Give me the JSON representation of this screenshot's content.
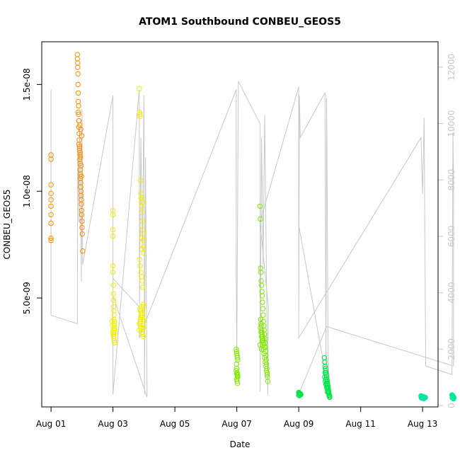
{
  "chart_data": {
    "type": "scatter",
    "title": "ATOM1 Southbound CONBEU_GEOS5",
    "xlabel": "Date",
    "ylabel": "CONBEU_GEOS5",
    "x_unit": "days since 2016-08-01",
    "xlim": [
      -0.3,
      12.5
    ],
    "ylim": [
      -1e-10,
      1.7e-08
    ],
    "y2lim": [
      -50,
      12900
    ],
    "x_ticks": [
      {
        "label": "Aug 01",
        "value": 0
      },
      {
        "label": "Aug 03",
        "value": 2
      },
      {
        "label": "Aug 05",
        "value": 4
      },
      {
        "label": "Aug 07",
        "value": 6
      },
      {
        "label": "Aug 09",
        "value": 8
      },
      {
        "label": "Aug 11",
        "value": 10
      },
      {
        "label": "Aug 13",
        "value": 12
      }
    ],
    "y_ticks": [
      {
        "label": "5.0e-09",
        "value": 5e-09
      },
      {
        "label": "1.0e-08",
        "value": 1e-08
      },
      {
        "label": "1.5e-08",
        "value": 1.5e-08
      }
    ],
    "y2_ticks": [
      {
        "label": "0",
        "value": 0
      },
      {
        "label": "2000",
        "value": 2000
      },
      {
        "label": "4000",
        "value": 4000
      },
      {
        "label": "6000",
        "value": 6000
      },
      {
        "label": "8000",
        "value": 8000
      },
      {
        "label": "10000",
        "value": 10000
      },
      {
        "label": "12000",
        "value": 12000
      }
    ],
    "grid": false,
    "series": [
      {
        "color": "#ff8c00",
        "x": [
          0.0,
          0.0,
          0.0,
          0.0,
          0.0,
          0.0,
          0.0,
          0.0,
          0.0,
          0.0,
          0.85,
          0.85,
          0.86,
          0.86,
          0.87,
          0.87,
          0.88,
          0.88,
          0.89,
          0.89,
          0.9,
          0.9,
          0.91,
          0.91,
          0.92,
          0.92,
          0.93,
          0.93,
          0.94,
          0.94,
          0.95,
          0.95,
          0.96,
          0.96,
          0.97,
          0.97,
          0.98,
          0.98,
          0.99,
          0.99,
          1.0,
          1.0,
          1.01,
          1.02,
          0.9,
          0.92,
          0.94,
          0.95,
          0.97,
          0.98,
          0.88,
          0.9,
          0.93,
          0.96,
          0.99
        ],
        "y": [
          1.17e-08,
          1.15e-08,
          1.03e-08,
          9.9e-09,
          9.6e-09,
          9.3e-09,
          8.9e-09,
          8.5e-09,
          7.8e-09,
          7.7e-09,
          1.64e-08,
          1.62e-08,
          1.6e-08,
          1.58e-08,
          1.55e-08,
          1.5e-08,
          1.46e-08,
          1.42e-08,
          1.4e-08,
          1.36e-08,
          1.33e-08,
          1.3e-08,
          1.27e-08,
          1.24e-08,
          1.21e-08,
          1.19e-08,
          1.17e-08,
          1.15e-08,
          1.13e-08,
          1.1e-08,
          1.08e-08,
          1.06e-08,
          1.04e-08,
          1.02e-08,
          1e-08,
          9.8e-09,
          9.6e-09,
          9.4e-09,
          9.1e-09,
          8.9e-09,
          8.6e-09,
          8.3e-09,
          8e-09,
          7.2e-09,
          1.22e-08,
          1.2e-08,
          1.18e-08,
          1.16e-08,
          1.12e-08,
          1.07e-08,
          1.37e-08,
          1.33e-08,
          1.31e-08,
          1.29e-08,
          1.26e-08
        ]
      },
      {
        "color": "#f4ee00",
        "x": [
          2.0,
          2.0,
          2.0,
          2.0,
          2.0,
          2.0,
          2.02,
          2.02,
          2.02,
          2.02,
          2.03,
          2.03,
          2.03,
          2.04,
          2.04,
          2.05,
          2.05,
          2.06,
          2.0,
          2.01,
          2.02,
          2.03,
          2.04,
          2.05,
          1.97,
          1.99,
          2.01,
          2.03,
          2.05,
          2.07,
          2.85,
          2.86,
          2.87,
          2.88,
          2.89,
          2.9,
          2.91,
          2.92,
          2.93,
          2.94,
          2.95,
          2.96,
          2.97,
          2.98,
          2.99,
          3.0,
          2.86,
          2.88,
          2.9,
          2.92,
          2.94,
          2.96,
          2.98,
          3.0,
          2.87,
          2.89,
          2.91,
          2.93,
          2.95,
          2.97,
          2.99,
          2.86,
          2.88,
          2.9,
          2.92,
          2.94,
          2.96,
          2.98,
          2.87,
          2.89,
          2.91,
          2.93,
          2.95,
          2.97,
          2.85,
          2.88,
          2.9,
          2.92,
          2.94,
          2.96,
          2.98
        ],
        "y": [
          9.1e-09,
          8.9e-09,
          8.2e-09,
          7.9e-09,
          6.5e-09,
          6.2e-09,
          5.6e-09,
          5.2e-09,
          4.9e-09,
          4.6e-09,
          4.4e-09,
          4.2e-09,
          4e-09,
          3.9e-09,
          3.8e-09,
          3.7e-09,
          3.6e-09,
          3.5e-09,
          3.4e-09,
          3.3e-09,
          3.2e-09,
          3.1e-09,
          3e-09,
          2.9e-09,
          3.9e-09,
          3.7e-09,
          3.5e-09,
          3.3e-09,
          3.6e-09,
          3.4e-09,
          1.48e-08,
          1.37e-08,
          1.36e-08,
          1.35e-08,
          1.05e-08,
          9.9e-09,
          9.7e-09,
          9.6e-09,
          9.3e-09,
          9e-09,
          8.6e-09,
          8.2e-09,
          8e-09,
          7.7e-09,
          7.4e-09,
          7.1e-09,
          6.8e-09,
          6.5e-09,
          6.2e-09,
          6e-09,
          5.8e-09,
          5.5e-09,
          4.7e-09,
          4.6e-09,
          4.5e-09,
          4.4e-09,
          4.3e-09,
          4.2e-09,
          4.1e-09,
          4e-09,
          3.9e-09,
          3.8e-09,
          3.7e-09,
          3.6e-09,
          3.5e-09,
          3.4e-09,
          3.3e-09,
          3.6e-09,
          3.8e-09,
          4e-09,
          4.4e-09,
          4.6e-09,
          4.3e-09,
          3.7e-09,
          3.5e-09,
          3.9e-09,
          4.1e-09,
          7.3e-09,
          7.8e-09,
          9.5e-09,
          3.2e-09
        ]
      },
      {
        "color": "#7fe800",
        "x": [
          5.98,
          5.99,
          6.0,
          6.01,
          6.02,
          6.03,
          5.99,
          6.0,
          6.01,
          6.02,
          6.03,
          6.0,
          6.01,
          6.02,
          5.98,
          6.0,
          6.02,
          6.75,
          6.76,
          6.77,
          6.78,
          6.79,
          6.8,
          6.81,
          6.82,
          6.83,
          6.84,
          6.85,
          6.86,
          6.87,
          6.88,
          6.89,
          6.9,
          6.91,
          6.92,
          6.93,
          6.94,
          6.95,
          6.96,
          6.97,
          6.98,
          6.99,
          7.0,
          6.76,
          6.78,
          6.8,
          6.82,
          6.84,
          6.86,
          6.88,
          6.9,
          6.92,
          6.94,
          6.96,
          6.98,
          6.78,
          6.8,
          6.82,
          6.84,
          6.86,
          6.88,
          6.77,
          6.79,
          6.81,
          6.83,
          6.85,
          6.75,
          6.8
        ],
        "y": [
          2.6e-09,
          2.5e-09,
          2.4e-09,
          2.3e-09,
          2.2e-09,
          2.1e-09,
          1.9e-09,
          1.7e-09,
          1.5e-09,
          1.4e-09,
          1.3e-09,
          1.2e-09,
          1.1e-09,
          1e-09,
          1.6e-09,
          1.45e-09,
          1.35e-09,
          9.3e-09,
          8.7e-09,
          6.4e-09,
          6.2e-09,
          5.8e-09,
          5.6e-09,
          5.3e-09,
          5.1e-09,
          4.8e-09,
          4.5e-09,
          4.2e-09,
          3.9e-09,
          3.7e-09,
          3.5e-09,
          3.3e-09,
          3.1e-09,
          2.9e-09,
          2.7e-09,
          2.5e-09,
          2.3e-09,
          2.1e-09,
          1.9e-09,
          1.7e-09,
          1.5e-09,
          1.3e-09,
          1.1e-09,
          3.6e-09,
          3.4e-09,
          3.2e-09,
          3e-09,
          2.8e-09,
          2.6e-09,
          2.4e-09,
          2.2e-09,
          2e-09,
          1.8e-09,
          1.6e-09,
          1.4e-09,
          3.8e-09,
          3.5e-09,
          3.3e-09,
          3.1e-09,
          2.9e-09,
          2.7e-09,
          4e-09,
          3.7e-09,
          3.4e-09,
          3.2e-09,
          3e-09,
          2.8e-09,
          2.6e-09
        ]
      },
      {
        "color": "#00e44a",
        "x": [
          8.0,
          8.01,
          8.02,
          8.03,
          8.04,
          8.05,
          8.06,
          8.07,
          8.0,
          8.02,
          8.04,
          8.06,
          8.83,
          8.84,
          8.85,
          8.86,
          8.87,
          8.88,
          8.89,
          8.9,
          8.91,
          8.92,
          8.93,
          8.94,
          8.95,
          8.96,
          8.97,
          8.98,
          8.99,
          9.0,
          8.84,
          8.86,
          8.88,
          8.9,
          8.92,
          8.94,
          8.96,
          8.98,
          9.0,
          8.85,
          8.87,
          8.89,
          8.91,
          8.93
        ],
        "y": [
          5.8e-10,
          5.6e-10,
          5.5e-10,
          5.4e-10,
          5.3e-10,
          5.2e-10,
          5e-10,
          4.8e-10,
          4.5e-10,
          4.3e-10,
          4.6e-10,
          4.9e-10,
          2.2e-09,
          2e-09,
          1.8e-09,
          1.7e-09,
          1.6e-09,
          1.5e-09,
          1.4e-09,
          1.3e-09,
          1.2e-09,
          1.1e-09,
          1e-09,
          9e-10,
          8e-10,
          7e-10,
          6e-10,
          5e-10,
          4e-10,
          3.5e-10,
          1.3e-09,
          1.1e-09,
          9.5e-10,
          8.5e-10,
          7.5e-10,
          6.5e-10,
          5.5e-10,
          4.5e-10,
          4e-10,
          1.5e-09,
          1.2e-09,
          1e-09,
          8e-10,
          6e-10
        ]
      },
      {
        "color": "#00e6a0",
        "x": [
          11.95,
          11.97,
          11.99,
          12.01,
          12.03,
          12.05,
          12.07,
          12.09,
          11.96,
          11.98,
          12.0,
          12.02,
          12.04,
          12.95,
          12.96,
          12.97,
          12.98,
          12.99,
          13.0,
          13.01,
          12.96,
          12.98,
          13.0
        ],
        "y": [
          4.2e-10,
          4e-10,
          3.9e-10,
          3.8e-10,
          3.7e-10,
          3.6e-10,
          3.5e-10,
          3.4e-10,
          3.3e-10,
          3.2e-10,
          3.1e-10,
          3e-10,
          2.9e-10,
          4.6e-10,
          4.4e-10,
          4.2e-10,
          4e-10,
          3.8e-10,
          3.6e-10,
          3.4e-10,
          3.2e-10,
          3e-10,
          2.8e-10
        ]
      }
    ],
    "altitude": {
      "color": "#c8c8c8",
      "x": [
        0.0,
        0.0,
        0.85,
        0.86,
        0.87,
        0.88,
        0.9,
        0.92,
        0.95,
        0.98,
        1.0,
        1.02,
        2.0,
        2.0,
        2.85,
        2.86,
        2.9,
        2.95,
        3.0,
        3.02,
        3.05,
        3.1,
        2.0,
        2.0,
        2.85,
        2.85,
        5.98,
        5.98,
        6.0,
        6.05,
        6.75,
        6.75,
        6.8,
        6.85,
        6.9,
        7.0,
        7.02,
        6.75,
        8.0,
        8.0,
        8.02,
        8.05,
        8.85,
        8.88,
        8.9,
        8.95,
        9.0,
        8.0,
        8.0,
        11.95,
        12.0,
        12.05,
        12.1,
        12.95,
        12.98,
        13.0,
        13.0,
        8.9,
        8.0
      ],
      "y": [
        11200,
        3200,
        2900,
        8700,
        7700,
        9000,
        6500,
        9900,
        8000,
        4400,
        10500,
        5000,
        11000,
        400,
        11200,
        3600,
        9500,
        5500,
        11000,
        400,
        8800,
        300,
        3900,
        4500,
        3500,
        2400,
        11200,
        4800,
        1800,
        11500,
        10000,
        500,
        9500,
        5000,
        10300,
        400,
        3500,
        6500,
        11300,
        2500,
        11000,
        9500,
        11100,
        800,
        10900,
        1900,
        300,
        6400,
        2400,
        9500,
        7500,
        10200,
        1400,
        1100,
        9700,
        8000,
        1400,
        2800,
        400
      ]
    }
  }
}
